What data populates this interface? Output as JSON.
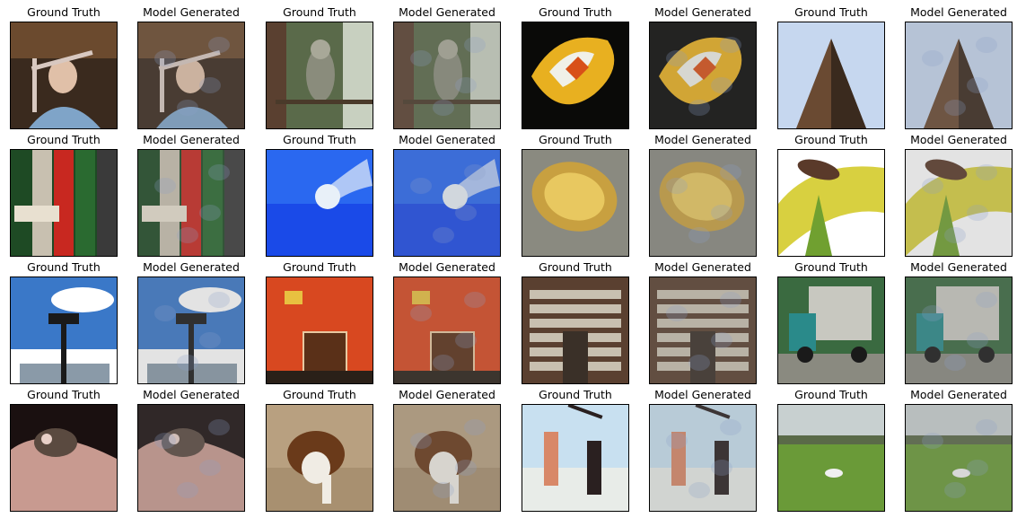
{
  "labels": {
    "ground_truth": "Ground Truth",
    "model_generated": "Model Generated"
  },
  "rows": [
    [
      {
        "scene": "woman-with-frame",
        "colors": [
          "#3a2a1e",
          "#6b4a2e",
          "#d8c8c0",
          "#7fa4c8"
        ]
      },
      {
        "scene": "owl-on-branch",
        "colors": [
          "#5a6a4a",
          "#8a8c7c",
          "#4a3a2a",
          "#c8d0c0"
        ]
      },
      {
        "scene": "clownfish",
        "colors": [
          "#0a0a08",
          "#e8b020",
          "#f0f0e8",
          "#d85018"
        ]
      },
      {
        "scene": "tower-sky",
        "colors": [
          "#aac4e8",
          "#6a4a32",
          "#3a2a1e",
          "#d8e4f4"
        ]
      }
    ],
    [
      {
        "scene": "beer-bottles",
        "colors": [
          "#1e4a24",
          "#c82820",
          "#e8e0d0",
          "#183818"
        ]
      },
      {
        "scene": "jellyfish",
        "colors": [
          "#1a4ae8",
          "#2a68f0",
          "#e8f0f8",
          "#0a2aa8"
        ]
      },
      {
        "scene": "baked-potato",
        "colors": [
          "#c8a040",
          "#e8c860",
          "#8a8a80",
          "#5a4a20"
        ]
      },
      {
        "scene": "snail-on-leaf",
        "colors": [
          "#d8d040",
          "#70a030",
          "#ffffff",
          "#5a3a2a"
        ]
      }
    ],
    [
      {
        "scene": "street-lamp-sky",
        "colors": [
          "#3a78c8",
          "#ffffff",
          "#1a1a1a",
          "#8a9aa8"
        ]
      },
      {
        "scene": "toaster-afc",
        "colors": [
          "#d84820",
          "#e8c8a0",
          "#5a3018",
          "#2a2018"
        ]
      },
      {
        "scene": "shop-shelves",
        "colors": [
          "#5a4030",
          "#c8c0b0",
          "#3a3028",
          "#8a7060"
        ]
      },
      {
        "scene": "garbage-truck",
        "colors": [
          "#3a6a40",
          "#2a8a8a",
          "#c8c8c0",
          "#1a1a1a"
        ]
      }
    ],
    [
      {
        "scene": "otter-on-rock",
        "colors": [
          "#1a1010",
          "#c89a90",
          "#5a4a40",
          "#e8d0c8"
        ]
      },
      {
        "scene": "collie-dog",
        "colors": [
          "#b8a080",
          "#6a3a1a",
          "#f0ece4",
          "#3a2a1a"
        ]
      },
      {
        "scene": "two-women-dancing",
        "colors": [
          "#c8e0f0",
          "#e8ece8",
          "#2a2020",
          "#d88868"
        ]
      },
      {
        "scene": "stork-in-field",
        "colors": [
          "#6a9a38",
          "#c8d0d0",
          "#5a6a48",
          "#f0f0f0"
        ]
      }
    ]
  ]
}
